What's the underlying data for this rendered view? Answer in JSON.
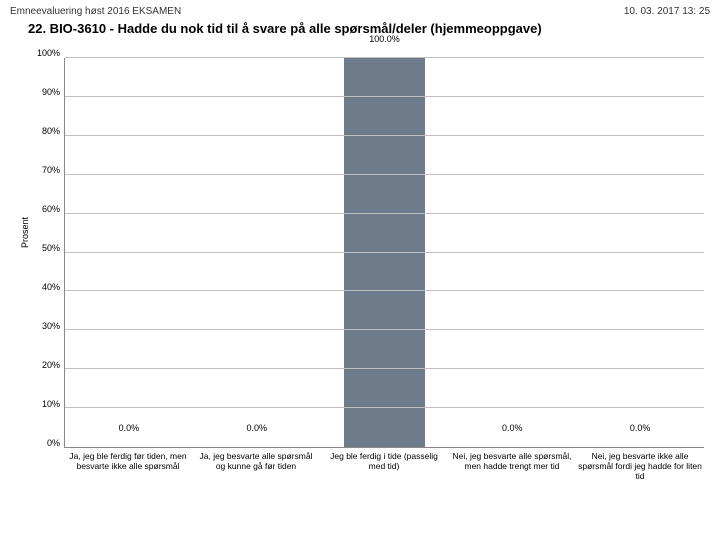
{
  "header": {
    "left": "Emneevaluering høst 2016 EKSAMEN",
    "right": "10. 03. 2017 13: 25"
  },
  "title": "22. BIO-3610 - Hadde du nok tid til å svare på alle spørsmål/deler (hjemmeoppgave)",
  "chart": {
    "type": "bar",
    "ylabel": "Prosent",
    "ylim": [
      0,
      100
    ],
    "ytick_step": 10,
    "yticks": [
      "0%",
      "10%",
      "20%",
      "30%",
      "40%",
      "50%",
      "60%",
      "70%",
      "80%",
      "90%",
      "100%"
    ],
    "grid_color": "#bfbfbf",
    "axis_color": "#888888",
    "background_color": "#ffffff",
    "bar_color": "#6e7b8b",
    "bar_width_pct": 64,
    "label_fontsize": 9,
    "categories": [
      "Ja, jeg ble ferdig før tiden, men besvarte ikke alle spørsmål",
      "Ja, jeg besvarte alle spørsmål og kunne gå før tiden",
      "Jeg ble ferdig i tide (passelig med tid)",
      "Nei, jeg besvarte alle spørsmål, men hadde trengt mer tid",
      "Nei, jeg besvarte ikke alle spørsmål fordi jeg hadde for liten tid"
    ],
    "values": [
      0.0,
      0.0,
      100.0,
      0.0,
      0.0
    ],
    "value_labels": [
      "0.0%",
      "0.0%",
      "100.0%",
      "0.0%",
      "0.0%"
    ]
  }
}
